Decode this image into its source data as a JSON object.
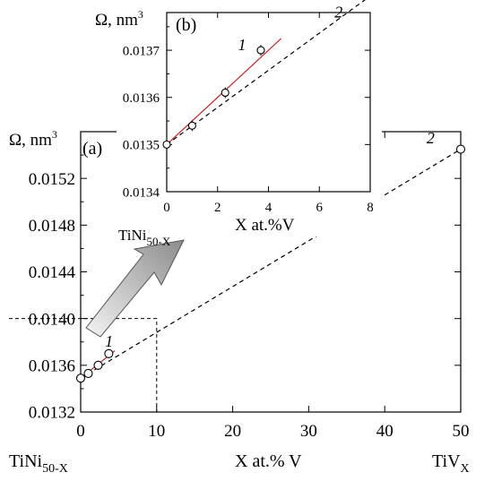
{
  "chart_data": [
    {
      "id": "main",
      "type": "scatter",
      "panel_label": "(a)",
      "ylabel": "Ω, nm",
      "ylabel_sup": "3",
      "xlabel": "X at.% V",
      "x_left_label": "TiNi",
      "x_left_label_sub": "50-X",
      "x_right_label": "TiV",
      "x_right_label_sub": "X",
      "xlim": [
        0,
        50
      ],
      "ylim": [
        0.0132,
        0.0156
      ],
      "x_ticks": [
        "0",
        "10",
        "20",
        "30",
        "40",
        "50"
      ],
      "y_ticks": [
        "0.0132",
        "0.0136",
        "0.0140",
        "0.0144",
        "0.0148",
        "0.0152"
      ],
      "series": [
        {
          "name": "1",
          "style": "solid",
          "color": "#cc2222",
          "points": [
            [
              0,
              0.01349
            ],
            [
              1,
              0.01353
            ],
            [
              2.3,
              0.0136
            ],
            [
              3.7,
              0.0137
            ]
          ],
          "fit": [
            [
              0,
              0.01349
            ],
            [
              4.5,
              0.013725
            ]
          ]
        },
        {
          "name": "2",
          "style": "dashed",
          "color": "#000000",
          "points": [
            [
              50,
              0.01545
            ]
          ],
          "fit": [
            [
              0,
              0.01349
            ],
            [
              50,
              0.01545
            ]
          ]
        }
      ],
      "zoom_box": {
        "x": [
          0,
          10
        ],
        "y": [
          0.0132,
          0.014
        ]
      }
    },
    {
      "id": "inset",
      "type": "scatter",
      "panel_label": "(b)",
      "ylabel": "Ω, nm",
      "ylabel_sup": "3",
      "xlabel": "X at.%V",
      "x_left_label": "TiNi",
      "x_left_label_sub": "50-X",
      "xlim": [
        0,
        8
      ],
      "ylim": [
        0.0134,
        0.01378
      ],
      "x_ticks": [
        "0",
        "2",
        "4",
        "6",
        "8"
      ],
      "y_ticks": [
        "0.0134",
        "0.0135",
        "0.0136",
        "0.0137"
      ],
      "series": [
        {
          "name": "1",
          "style": "solid",
          "color": "#cc2222",
          "points": [
            [
              0,
              0.0135
            ],
            [
              1,
              0.01354
            ],
            [
              2.3,
              0.01361
            ],
            [
              3.7,
              0.0137
            ]
          ],
          "fit": [
            [
              0,
              0.0135
            ],
            [
              4.5,
              0.013725
            ]
          ]
        },
        {
          "name": "2",
          "style": "dashed",
          "color": "#000000",
          "points": [],
          "fit": [
            [
              0,
              0.0135
            ],
            [
              8,
              0.013815
            ]
          ]
        }
      ]
    }
  ]
}
